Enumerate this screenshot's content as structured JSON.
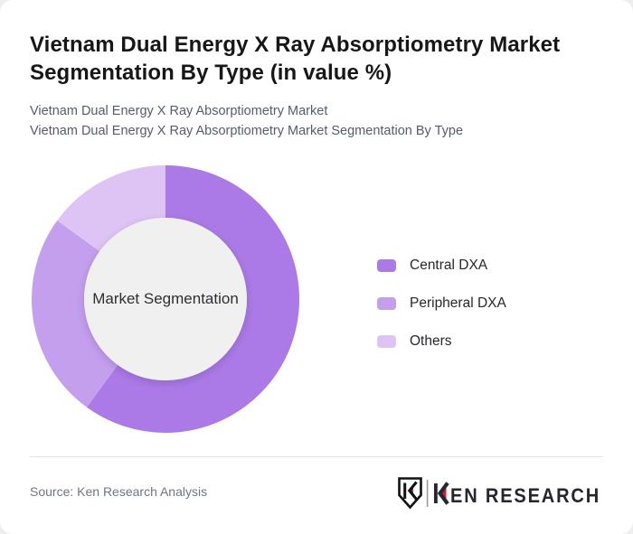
{
  "header": {
    "title": "Vietnam Dual Energy X Ray Absorptiometry Market Segmentation By Type (in value %)",
    "subtitle_line1": "Vietnam Dual Energy X Ray Absorptiometry Market",
    "subtitle_line2": "Vietnam Dual Energy X Ray Absorptiometry Market Segmentation By Type"
  },
  "chart_data": {
    "type": "pie",
    "variant": "donut",
    "title": "Vietnam Dual Energy X Ray Absorptiometry Market Segmentation By Type (in value %)",
    "center_label": "Market Segmentation",
    "categories": [
      "Central DXA",
      "Peripheral DXA",
      "Others"
    ],
    "values": [
      60,
      25,
      15
    ],
    "unit": "value %",
    "colors": [
      "#ab7ae6",
      "#c49fee",
      "#ddc4f4"
    ],
    "hole_color": "#f0f0f0",
    "start_angle_deg": 0,
    "direction": "clockwise",
    "legend_position": "right",
    "data_labels_shown": false
  },
  "footer": {
    "source": "Source: Ken Research Analysis",
    "logo": {
      "brand": "KEN RESEARCH",
      "accent_color": "#c1272d",
      "text_color": "#26262e"
    }
  }
}
